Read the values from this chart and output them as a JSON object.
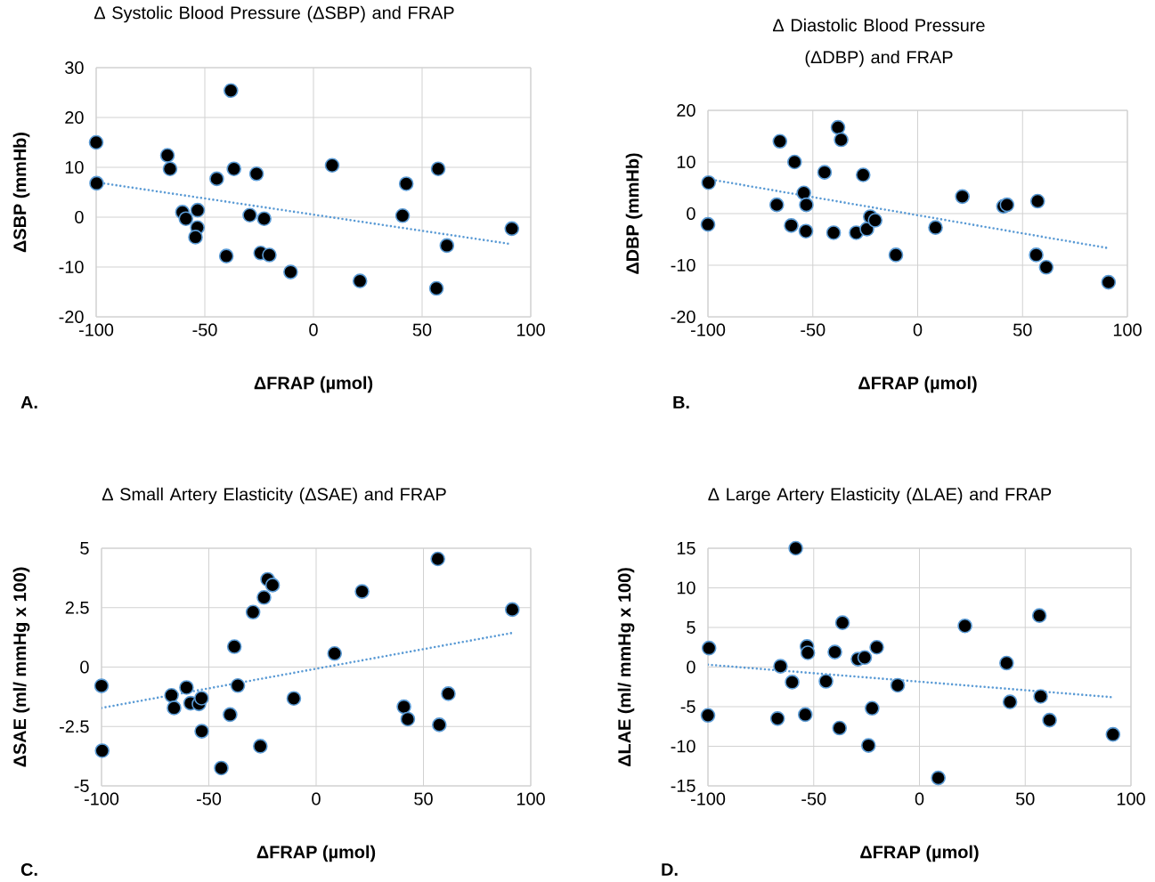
{
  "chart_data": [
    {
      "type": "scatter",
      "title": "Δ Systolic Blood Pressure (ΔSBP) and FRAP",
      "xlabel": "ΔFRAP (µmol)",
      "ylabel": "ΔSBP (mmHb)",
      "annotations": [
        "A."
      ],
      "xlim": [
        -100,
        100
      ],
      "xticks": [
        -100,
        -50,
        0,
        50,
        100
      ],
      "ylim": [
        -20,
        30
      ],
      "yticks": [
        -20,
        -10,
        0,
        10,
        20,
        30
      ],
      "grid": true,
      "marker": "circle",
      "series": [
        {
          "color": "#000000",
          "x": [
            -100,
            -99.8,
            -67.2,
            -66,
            -60.3,
            -58.7,
            -53.3,
            -53.4,
            -54.3,
            -44.5,
            -38,
            -40.1,
            -36.6,
            -26.2,
            -29.3,
            -22.7,
            -24.3,
            -20.3,
            -10.5,
            8.6,
            21.4,
            41,
            42.7,
            57.4,
            56.6,
            61.4,
            91.3
          ],
          "values": [
            15,
            6.8,
            12.4,
            9.7,
            1,
            -0.3,
            1.4,
            -2.1,
            -4,
            7.7,
            25.4,
            -7.8,
            9.7,
            8.7,
            0.4,
            -0.3,
            -7.2,
            -7.6,
            -11,
            10.4,
            -12.8,
            0.3,
            6.7,
            9.7,
            -14.3,
            -5.7,
            -2.3
          ]
        },
        {
          "type": "line",
          "color": "#5b9bd5",
          "marker": "none",
          "line_style": "dotted",
          "x": [
            -100,
            91
          ],
          "values": [
            7,
            -5.4
          ]
        }
      ]
    },
    {
      "type": "scatter",
      "title": "Δ Diastolic Blood Pressure (ΔDBP) and FRAP",
      "xlabel": "ΔFRAP (µmol)",
      "ylabel": "ΔDBP (mmHb)",
      "annotations": [
        "B."
      ],
      "xlim": [
        -100,
        100
      ],
      "xticks": [
        -100,
        -50,
        0,
        50,
        100
      ],
      "ylim": [
        -20,
        20
      ],
      "yticks": [
        -20,
        -10,
        0,
        10,
        20
      ],
      "grid": true,
      "marker": "circle",
      "series": [
        {
          "color": "#000000",
          "x": [
            -99.7,
            -100,
            -65.7,
            -67.2,
            -58.7,
            -60.3,
            -54.3,
            -53.1,
            -53.3,
            -44.4,
            -38,
            -36.5,
            -40.1,
            -26,
            -29.3,
            -24.2,
            -22.6,
            -20.3,
            -10.4,
            8.5,
            21.3,
            40.9,
            42.6,
            57.2,
            56.5,
            61.3,
            91
          ],
          "values": [
            6,
            -2.1,
            14,
            1.7,
            10,
            -2.3,
            4,
            1.7,
            -3.4,
            8,
            16.7,
            14.3,
            -3.7,
            7.5,
            -3.7,
            -3,
            -0.6,
            -1.3,
            -8,
            -2.7,
            3.3,
            1.4,
            1.7,
            2.4,
            -8,
            -10.4,
            -13.3
          ]
        },
        {
          "type": "line",
          "color": "#5b9bd5",
          "marker": "none",
          "line_style": "dotted",
          "x": [
            -100,
            91
          ],
          "values": [
            6.7,
            -6.7
          ]
        }
      ]
    },
    {
      "type": "scatter",
      "title": "Δ Small Artery Elasticity (ΔSAE) and FRAP",
      "xlabel": "ΔFRAP (µmol)",
      "ylabel": "ΔSAE (ml/ mmHg x 100)",
      "annotations": [
        "C."
      ],
      "xlim": [
        -100,
        100
      ],
      "xticks": [
        -100,
        -50,
        0,
        50,
        100
      ],
      "ylim": [
        -5,
        5
      ],
      "yticks": [
        -5,
        -2.5,
        0,
        2.5,
        5
      ],
      "grid": true,
      "marker": "circle",
      "series": [
        {
          "color": "#000000",
          "x": [
            -100,
            -99.7,
            -67.4,
            -66.2,
            -60.4,
            -58.5,
            -54.6,
            -53.4,
            -53.3,
            -44.2,
            -40.1,
            -38.1,
            -36.5,
            -29.4,
            -26,
            -24.3,
            -22.6,
            -20.3,
            -10.4,
            8.6,
            21.4,
            40.9,
            42.7,
            56.7,
            57.4,
            61.6,
            91.4
          ],
          "values": [
            -0.79,
            -3.52,
            -1.19,
            -1.72,
            -0.86,
            -1.52,
            -1.55,
            -1.31,
            -2.7,
            -4.25,
            -2,
            0.86,
            -0.78,
            2.31,
            -3.33,
            2.93,
            3.69,
            3.45,
            -1.32,
            0.57,
            3.18,
            -1.67,
            -2.19,
            4.55,
            -2.43,
            -1.12,
            2.42
          ]
        },
        {
          "type": "line",
          "color": "#5b9bd5",
          "marker": "none",
          "line_style": "dotted",
          "x": [
            -100,
            91
          ],
          "values": [
            -1.72,
            1.43
          ]
        }
      ]
    },
    {
      "type": "scatter",
      "title": "Δ Large Artery Elasticity (ΔLAE) and FRAP",
      "xlabel": "ΔFRAP (µmol)",
      "ylabel": "ΔLAE (ml/ mmHg x 100)",
      "annotations": [
        "D."
      ],
      "xlim": [
        -100,
        100
      ],
      "xticks": [
        -100,
        -50,
        0,
        50,
        100
      ],
      "ylim": [
        -15,
        15
      ],
      "yticks": [
        -15,
        -10,
        -5,
        0,
        5,
        10,
        15
      ],
      "grid": true,
      "marker": "circle",
      "series": [
        {
          "color": "#000000",
          "x": [
            -99.5,
            -100,
            -65.7,
            -67.1,
            -60.2,
            -58.5,
            -53.2,
            -52.8,
            -54,
            -44.2,
            -40,
            -36.4,
            -37.8,
            -29.1,
            -25.9,
            -20.2,
            -22.4,
            -24.1,
            -10.3,
            8.9,
            21.5,
            41.2,
            42.8,
            56.7,
            57.3,
            61.5,
            91.5
          ],
          "values": [
            2.4,
            -6.1,
            0.1,
            -6.5,
            -1.9,
            15,
            2.6,
            1.8,
            -6,
            -1.8,
            1.9,
            5.6,
            -7.7,
            1,
            1.2,
            2.5,
            -5.2,
            -9.9,
            -2.3,
            -14,
            5.2,
            0.5,
            -4.4,
            6.5,
            -3.7,
            -6.7,
            -8.5
          ]
        },
        {
          "type": "line",
          "color": "#5b9bd5",
          "marker": "none",
          "line_style": "dotted",
          "x": [
            -100,
            91
          ],
          "values": [
            0.3,
            -3.8
          ]
        }
      ]
    }
  ]
}
